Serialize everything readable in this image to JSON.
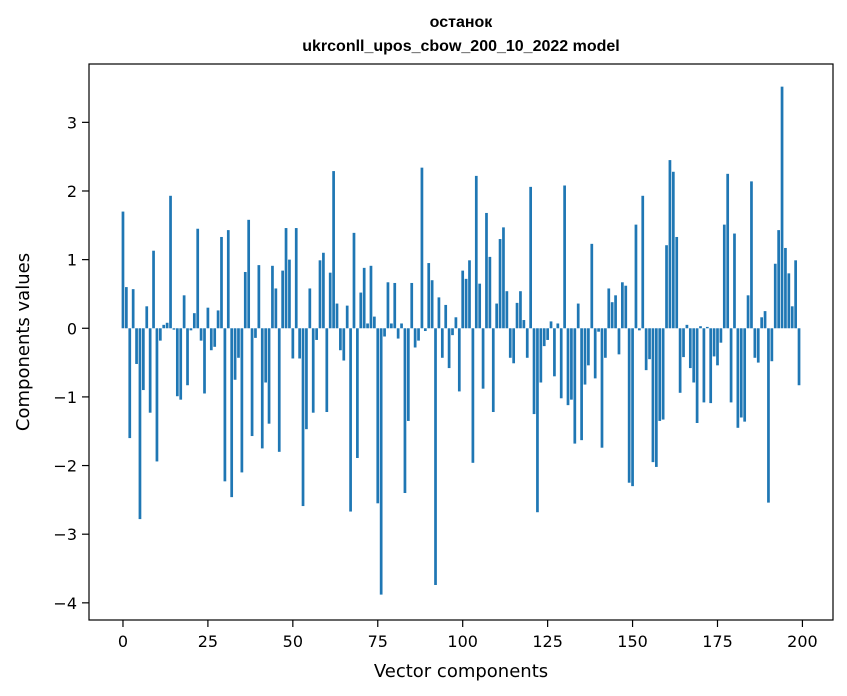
{
  "chart_data": {
    "type": "bar",
    "title": "останок",
    "subtitle": "ukrconll_upos_cbow_200_10_2022 model",
    "xlabel": "Vector components",
    "ylabel": "Components values",
    "xlim": [
      -10,
      209
    ],
    "ylim": [
      -4.25,
      3.85
    ],
    "xticks": [
      0,
      25,
      50,
      75,
      100,
      125,
      150,
      175,
      200
    ],
    "yticks": [
      -4,
      -3,
      -2,
      -1,
      0,
      1,
      2,
      3
    ],
    "ytick_labels": [
      "−4",
      "−3",
      "−2",
      "−1",
      "0",
      "1",
      "2",
      "3"
    ],
    "bar_color": "#1f77b4",
    "grid": false,
    "x": [
      0,
      1,
      2,
      3,
      4,
      5,
      6,
      7,
      8,
      9,
      10,
      11,
      12,
      13,
      14,
      15,
      16,
      17,
      18,
      19,
      20,
      21,
      22,
      23,
      24,
      25,
      26,
      27,
      28,
      29,
      30,
      31,
      32,
      33,
      34,
      35,
      36,
      37,
      38,
      39,
      40,
      41,
      42,
      43,
      44,
      45,
      46,
      47,
      48,
      49,
      50,
      51,
      52,
      53,
      54,
      55,
      56,
      57,
      58,
      59,
      60,
      61,
      62,
      63,
      64,
      65,
      66,
      67,
      68,
      69,
      70,
      71,
      72,
      73,
      74,
      75,
      76,
      77,
      78,
      79,
      80,
      81,
      82,
      83,
      84,
      85,
      86,
      87,
      88,
      89,
      90,
      91,
      92,
      93,
      94,
      95,
      96,
      97,
      98,
      99,
      100,
      101,
      102,
      103,
      104,
      105,
      106,
      107,
      108,
      109,
      110,
      111,
      112,
      113,
      114,
      115,
      116,
      117,
      118,
      119,
      120,
      121,
      122,
      123,
      124,
      125,
      126,
      127,
      128,
      129,
      130,
      131,
      132,
      133,
      134,
      135,
      136,
      137,
      138,
      139,
      140,
      141,
      142,
      143,
      144,
      145,
      146,
      147,
      148,
      149,
      150,
      151,
      152,
      153,
      154,
      155,
      156,
      157,
      158,
      159,
      160,
      161,
      162,
      163,
      164,
      165,
      166,
      167,
      168,
      169,
      170,
      171,
      172,
      173,
      174,
      175,
      176,
      177,
      178,
      179,
      180,
      181,
      182,
      183,
      184,
      185,
      186,
      187,
      188,
      189,
      190,
      191,
      192,
      193,
      194,
      195,
      196,
      197,
      198,
      199
    ],
    "values": [
      1.7,
      0.6,
      -1.6,
      0.57,
      -0.52,
      -2.78,
      -0.9,
      0.32,
      -1.23,
      1.13,
      -1.94,
      -0.18,
      0.05,
      0.08,
      1.93,
      -0.02,
      -0.99,
      -1.04,
      0.48,
      -0.83,
      -0.03,
      0.22,
      1.45,
      -0.18,
      -0.95,
      0.3,
      -0.32,
      -0.27,
      0.26,
      1.33,
      -2.23,
      1.43,
      -2.46,
      -0.75,
      -0.43,
      -2.1,
      0.82,
      1.58,
      -1.57,
      -0.14,
      0.92,
      -1.75,
      -0.79,
      -1.39,
      0.91,
      0.58,
      -1.8,
      0.84,
      1.46,
      1.0,
      -0.44,
      1.46,
      -0.44,
      -2.59,
      -1.47,
      0.58,
      -1.23,
      -0.17,
      0.99,
      1.1,
      -1.22,
      0.81,
      2.29,
      0.36,
      -0.32,
      -0.47,
      0.33,
      -2.67,
      1.39,
      -1.89,
      0.52,
      0.88,
      0.07,
      0.91,
      0.17,
      -2.55,
      -3.88,
      -0.12,
      0.67,
      0.07,
      0.66,
      -0.15,
      0.07,
      -2.4,
      -1.35,
      0.66,
      -0.28,
      -0.18,
      2.34,
      -0.04,
      0.95,
      0.7,
      -3.74,
      0.45,
      -0.43,
      0.34,
      -0.58,
      -0.1,
      0.16,
      -0.92,
      0.84,
      0.72,
      0.99,
      -1.96,
      2.22,
      0.65,
      -0.88,
      1.68,
      1.04,
      -1.22,
      0.36,
      1.3,
      1.47,
      0.54,
      -0.43,
      -0.51,
      0.37,
      0.54,
      0.12,
      -0.43,
      2.06,
      -1.25,
      -2.68,
      -0.79,
      -0.26,
      -0.17,
      0.1,
      -0.7,
      0.07,
      -1.02,
      2.08,
      -1.12,
      -1.04,
      -1.68,
      0.36,
      -1.63,
      -0.82,
      -0.54,
      1.23,
      -0.73,
      -0.05,
      -1.74,
      -0.43,
      0.58,
      0.38,
      0.48,
      -0.38,
      0.67,
      0.62,
      -2.25,
      -2.3,
      1.51,
      -0.03,
      1.93,
      -0.61,
      -0.45,
      -1.95,
      -2.02,
      -1.35,
      -1.33,
      1.21,
      2.45,
      2.28,
      1.33,
      -0.94,
      -0.42,
      0.05,
      -0.58,
      -0.79,
      -1.38,
      0.03,
      -1.08,
      0.02,
      -1.09,
      -0.41,
      -0.54,
      -0.21,
      1.51,
      2.25,
      -1.08,
      1.38,
      -1.45,
      -1.3,
      -1.36,
      0.48,
      2.14,
      -0.43,
      -0.5,
      0.16,
      0.25,
      -2.54,
      -0.48,
      0.94,
      1.43,
      3.52,
      1.17,
      0.8,
      0.32,
      0.99,
      -0.83
    ]
  }
}
